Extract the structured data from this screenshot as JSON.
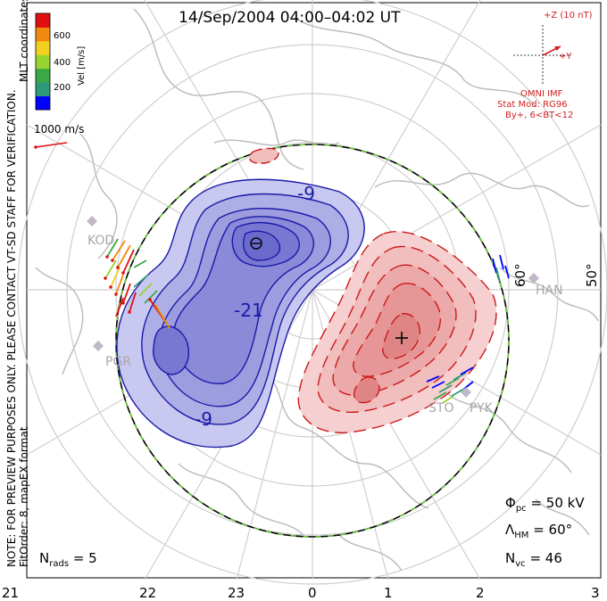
{
  "title": "14/Sep/2004 04:00–04:02 UT",
  "colorbar": {
    "unit_label": "Vel [m/s]",
    "ticks": [
      "600",
      "400",
      "200"
    ],
    "colors": [
      "#0000ff",
      "#2e9a7a",
      "#39a845",
      "#98d430",
      "#f0d020",
      "#f08a10",
      "#e01010"
    ]
  },
  "coords_label": "MLT coordinates",
  "ref_vector_label": "1000 m/s",
  "imf": {
    "z_label": "+Z (10 nT)",
    "y_label": "+Y",
    "source": "OMNI IMF",
    "stat_mod": "Stat Mod: RG96",
    "condition": "By+, 6<BT<12"
  },
  "disclaimer": "NOTE: FOR PREVIEW PURPOSES ONLY. PLEASE CONTACT VT-SD STAFF FOR VERIFICATION.",
  "fitorder": "FitOrder: 8, mapEX format",
  "mlt_ticks": [
    "21",
    "22",
    "23",
    "0",
    "1",
    "2",
    "3"
  ],
  "lat_labels": [
    "60°",
    "50°"
  ],
  "contour_labels": [
    "-9",
    "-21",
    "-9"
  ],
  "extrema_markers": {
    "min": "⊖",
    "max": "+"
  },
  "radars": [
    "KOD",
    "PGR",
    "STO",
    "PYK",
    "HAN"
  ],
  "stats": {
    "phi_main": "Φ",
    "phi_sub": "pc",
    "phi_value": "= 50 kV",
    "lambda_main": "Λ",
    "lambda_sub": "HM",
    "lambda_value": "= 60°",
    "nvc_main": "N",
    "nvc_sub": "vc",
    "nvc_value": "= 46",
    "nrads_main": "N",
    "nrads_sub": "rads",
    "nrads_value": "= 5"
  },
  "colors": {
    "negative_contour": "#1a1aa8",
    "positive_contour": "#cc1a1a",
    "neg_fill": "#8c8ce0",
    "pos_fill": "#f0a8a8",
    "coast": "#bdbdbd",
    "boundary_green": "#6cc83c"
  }
}
